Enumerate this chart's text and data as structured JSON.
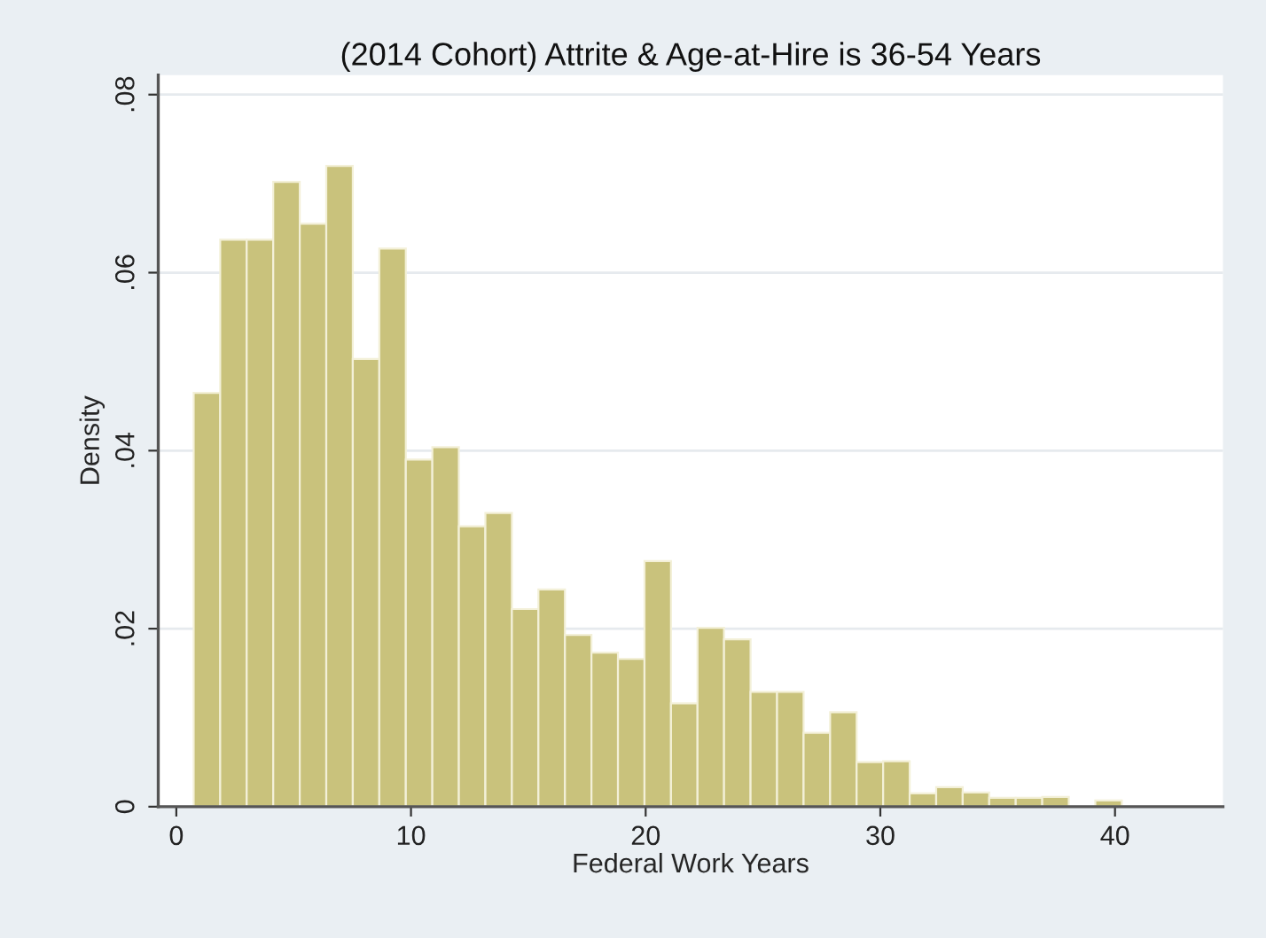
{
  "chart_data": {
    "type": "histogram",
    "title": "(2014 Cohort) Attrite & Age-at-Hire is 36-54 Years",
    "xlabel": "Federal Work Years",
    "ylabel": "Density",
    "bins": [
      0.74,
      1.87,
      3.0,
      4.13,
      5.26,
      6.39,
      7.52,
      8.65,
      9.78,
      10.91,
      12.04,
      13.17,
      14.3,
      15.43,
      16.56,
      17.69,
      18.82,
      19.95,
      21.08,
      22.21,
      23.34,
      24.47,
      25.6,
      26.73,
      27.86,
      28.99,
      30.12,
      31.25,
      32.38,
      33.51,
      34.64,
      35.77,
      36.9,
      38.03,
      39.16,
      40.29,
      41.42,
      42.55,
      43.68
    ],
    "values": [
      0.0465,
      0.0637,
      0.0637,
      0.0702,
      0.0655,
      0.072,
      0.0503,
      0.0627,
      0.039,
      0.0404,
      0.0315,
      0.033,
      0.0222,
      0.0244,
      0.0193,
      0.0173,
      0.0166,
      0.0276,
      0.0116,
      0.0201,
      0.0188,
      0.0129,
      0.0129,
      0.0083,
      0.0106,
      0.005,
      0.0051,
      0.0015,
      0.0022,
      0.0016,
      0.001,
      0.001,
      0.0011,
      0,
      0.0007,
      0,
      0,
      null
    ],
    "color": "#c9c27c",
    "xlim": [
      -0.77,
      44.6
    ],
    "xticks": [
      0,
      10,
      20,
      30,
      40
    ],
    "ylim": [
      0,
      0.0822
    ],
    "yticks": [
      {
        "value": 0,
        "label": "0"
      },
      {
        "value": 0.02,
        "label": ".02"
      },
      {
        "value": 0.04,
        "label": ".04"
      },
      {
        "value": 0.06,
        "label": ".06"
      },
      {
        "value": 0.08,
        "label": ".08"
      }
    ],
    "grid": "y",
    "legend": false
  }
}
